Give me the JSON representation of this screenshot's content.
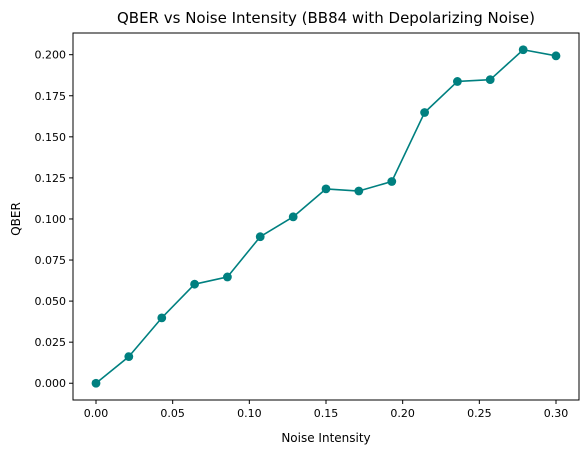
{
  "chart_data": {
    "type": "line",
    "title": "QBER vs Noise Intensity (BB84 with Depolarizing Noise)",
    "xlabel": "Noise Intensity",
    "ylabel": "QBER",
    "xlim": [
      -0.015,
      0.315
    ],
    "ylim": [
      -0.0102,
      0.2132
    ],
    "xticks": [
      0.0,
      0.05,
      0.1,
      0.15,
      0.2,
      0.25,
      0.3
    ],
    "xtick_labels": [
      "0.00",
      "0.05",
      "0.10",
      "0.15",
      "0.20",
      "0.25",
      "0.30"
    ],
    "yticks": [
      0.0,
      0.025,
      0.05,
      0.075,
      0.1,
      0.125,
      0.15,
      0.175,
      0.2
    ],
    "ytick_labels": [
      "0.000",
      "0.025",
      "0.050",
      "0.075",
      "0.100",
      "0.125",
      "0.150",
      "0.175",
      "0.200"
    ],
    "grid": false,
    "legend": null,
    "series": [
      {
        "color": "#008080",
        "marker": "circle",
        "x": [
          0.0,
          0.0214,
          0.0429,
          0.0643,
          0.0857,
          0.1071,
          0.1286,
          0.15,
          0.1714,
          0.1929,
          0.2143,
          0.2357,
          0.2571,
          0.2786,
          0.3
        ],
        "y": [
          0.0,
          0.0162,
          0.0398,
          0.0603,
          0.0647,
          0.0892,
          0.1013,
          0.1183,
          0.117,
          0.1228,
          0.1648,
          0.1837,
          0.1848,
          0.203,
          0.1993
        ]
      }
    ]
  }
}
